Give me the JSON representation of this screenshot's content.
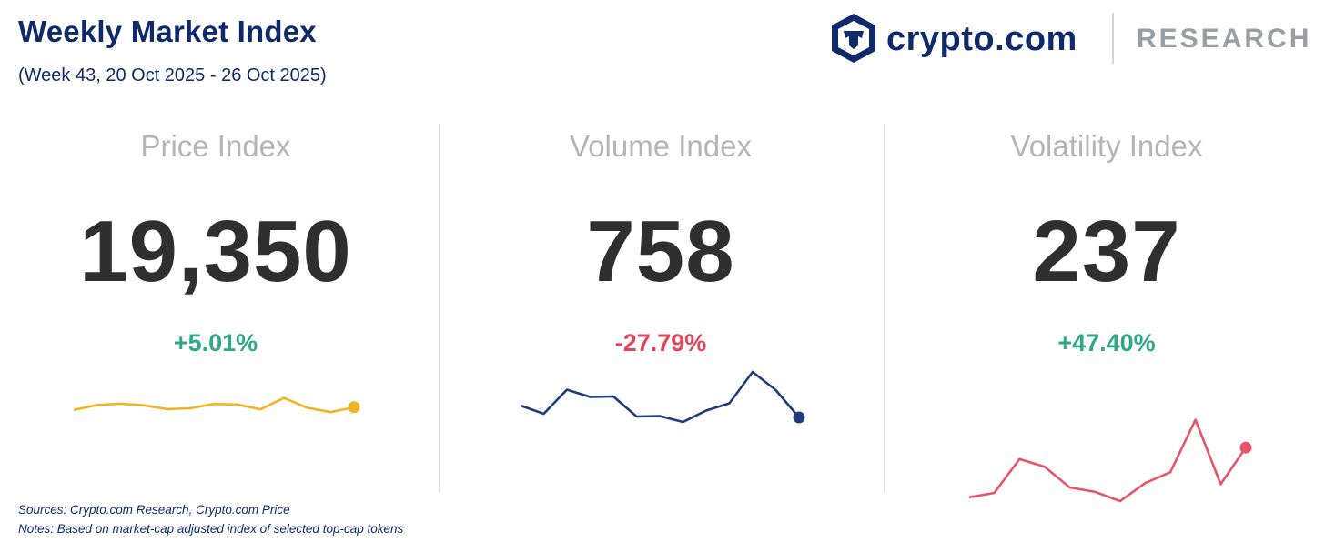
{
  "header": {
    "title": "Weekly Market Index",
    "subtitle": "(Week 43, 20 Oct 2025 - 26 Oct 2025)"
  },
  "brand": {
    "logo_text": "crypto.com",
    "research_text": "RESEARCH",
    "logo_color": "#0f2a6b",
    "research_color": "#9a9ea3"
  },
  "chart_data": [
    {
      "type": "line",
      "title": "Price Index",
      "value": "19,350",
      "change": "+5.01%",
      "change_color": "#2ea888",
      "line_color": "#f2b323",
      "values": [
        18.2,
        19.1,
        19.35,
        19.05,
        18.35,
        18.5,
        19.3,
        19.2,
        18.3,
        20.4,
        18.6,
        17.8,
        18.7
      ],
      "ylim": [
        0,
        30
      ]
    },
    {
      "type": "line",
      "title": "Volume Index",
      "value": "758",
      "change": "-27.79%",
      "change_color": "#e0455b",
      "line_color": "#1f3d7a",
      "values": [
        11.8,
        10.0,
        15.3,
        13.7,
        13.8,
        9.4,
        9.5,
        8.2,
        10.7,
        12.3,
        19.2,
        15.2,
        9.2
      ],
      "ylim": [
        0,
        25
      ]
    },
    {
      "type": "line",
      "title": "Volatility Index",
      "value": "237",
      "change": "+47.40%",
      "change_color": "#2ea888",
      "line_color": "#e65467",
      "values": [
        2.2,
        3.0,
        9.2,
        7.8,
        4.0,
        3.2,
        1.5,
        4.8,
        6.8,
        16.4,
        4.6,
        11.3
      ],
      "ylim": [
        0,
        30
      ]
    }
  ],
  "footer": {
    "sources": "Sources: Crypto.com Research,  Crypto.com Price",
    "notes": "Notes: Based on market-cap adjusted index of selected top-cap tokens"
  }
}
